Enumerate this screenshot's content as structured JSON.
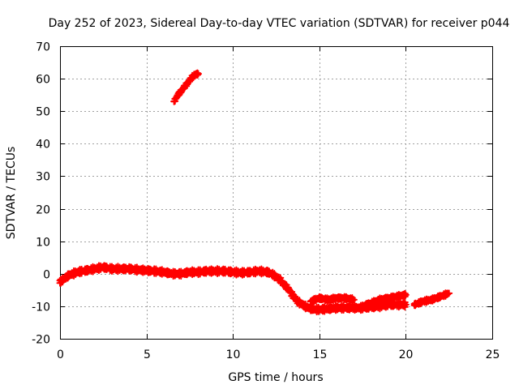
{
  "chart_data": {
    "type": "scatter",
    "title": "Day 252 of 2023, Sidereal Day-to-day VTEC variation (SDTVAR) for receiver p044",
    "xlabel": "GPS time / hours",
    "ylabel": "SDTVAR / TECUs",
    "xlim": [
      0,
      25
    ],
    "ylim": [
      -20,
      70
    ],
    "xticks": [
      0,
      5,
      10,
      15,
      20,
      25
    ],
    "yticks": [
      -20,
      -10,
      0,
      10,
      20,
      30,
      40,
      50,
      60,
      70
    ],
    "grid": true,
    "legend": "none",
    "series": [
      {
        "name": "SDTVAR",
        "color": "#ff0000",
        "marker": "plus",
        "segments": [
          {
            "x": [
              0,
              0.25,
              0.5,
              0.75,
              1,
              1.5,
              2,
              2.5,
              3,
              3.5,
              4,
              4.5,
              5,
              5.5,
              6,
              6.5,
              7,
              7.5,
              8,
              8.5,
              9,
              9.5,
              10,
              10.5,
              11,
              11.5,
              12,
              12.25,
              12.5,
              12.75,
              13,
              13.25,
              13.5,
              13.75,
              14,
              14.25,
              14.5,
              14.75,
              15,
              15.5,
              16,
              16.5,
              17,
              17.5,
              18,
              18.5,
              19,
              19.5,
              20
            ],
            "y": [
              -2.5,
              -1.5,
              -0.5,
              0,
              0.5,
              1,
              1.5,
              2,
              1.5,
              1.5,
              1.5,
              1.2,
              1,
              0.8,
              0.5,
              0,
              0,
              0.5,
              0.5,
              0.8,
              0.8,
              0.8,
              0.5,
              0.3,
              0.5,
              0.8,
              0.5,
              0,
              -1,
              -2,
              -3.5,
              -5,
              -7,
              -8.5,
              -9.5,
              -10.2,
              -10.7,
              -11,
              -11,
              -10.8,
              -10.5,
              -10.5,
              -10.5,
              -10.5,
              -10.2,
              -10,
              -9.5,
              -9.5,
              -9.5
            ]
          },
          {
            "x": [
              14.5,
              15,
              15.5,
              16,
              16.5,
              17
            ],
            "y": [
              -8.5,
              -7.5,
              -8,
              -7.5,
              -7.5,
              -8
            ]
          },
          {
            "x": [
              17.5,
              18,
              18.5,
              19,
              19.5,
              20
            ],
            "y": [
              -10,
              -9,
              -8,
              -7.5,
              -7,
              -6.5
            ]
          },
          {
            "x": [
              20.5,
              21,
              21.5,
              22,
              22.5
            ],
            "y": [
              -9.5,
              -8.5,
              -8,
              -7,
              -6
            ]
          },
          {
            "x": [
              6.6,
              6.8,
              7,
              7.2,
              7.4,
              7.6,
              7.8,
              8
            ],
            "y": [
              53,
              54.8,
              56.2,
              57.5,
              58.8,
              60.2,
              61.3,
              61.5
            ]
          }
        ]
      }
    ]
  }
}
